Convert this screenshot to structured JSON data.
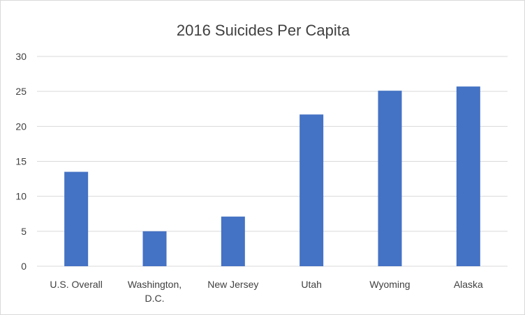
{
  "chart_data": {
    "type": "bar",
    "title": "2016 Suicides Per Capita",
    "xlabel": "",
    "ylabel": "",
    "categories": [
      [
        "U.S. Overall"
      ],
      [
        "Washington,",
        "D.C."
      ],
      [
        "New Jersey"
      ],
      [
        "Utah"
      ],
      [
        "Wyoming"
      ],
      [
        "Alaska"
      ]
    ],
    "values": [
      13.5,
      5.0,
      7.1,
      21.7,
      25.1,
      25.7
    ],
    "ylim": [
      0,
      30
    ],
    "yticks": [
      "0",
      "5",
      "10",
      "15",
      "20",
      "25",
      "30"
    ],
    "grid": true,
    "legend": "none",
    "bar_color": "#4472C4",
    "grid_color": "#d9d9d9"
  }
}
